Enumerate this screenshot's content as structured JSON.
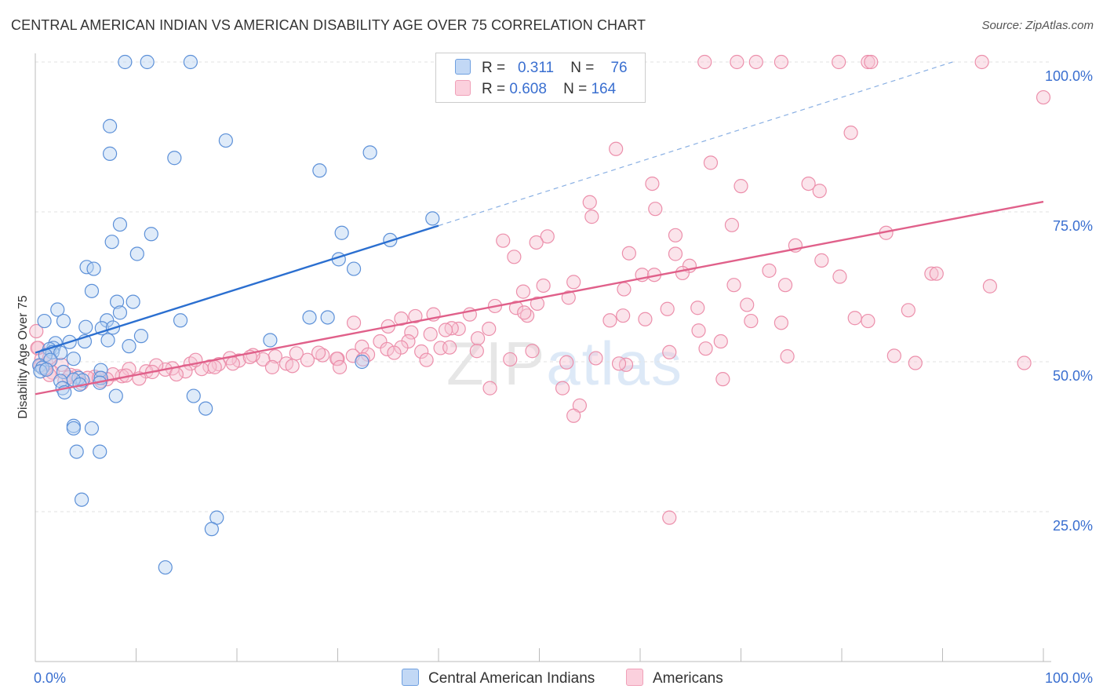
{
  "title": "CENTRAL AMERICAN INDIAN VS AMERICAN DISABILITY AGE OVER 75 CORRELATION CHART",
  "source": "Source: ZipAtlas.com",
  "watermark": "ZIPatlas",
  "legend": {
    "r_label": "R =",
    "n_label": "N =",
    "rows": [
      {
        "r": "0.311",
        "n": "76"
      },
      {
        "r": "0.608",
        "n": "164"
      }
    ]
  },
  "bottom_legend": [
    "Central American Indians",
    "Americans"
  ],
  "chart_data": {
    "type": "scatter",
    "title": "CENTRAL AMERICAN INDIAN VS AMERICAN DISABILITY AGE OVER 75 CORRELATION CHART",
    "xlabel": "",
    "ylabel": "Disability Age Over 75",
    "xlim": [
      0,
      100
    ],
    "ylim": [
      0,
      100
    ],
    "x_tick_labels": [
      "0.0%",
      "100.0%"
    ],
    "y_tick_labels": [
      "25.0%",
      "50.0%",
      "75.0%",
      "100.0%"
    ],
    "y_ticks": [
      25,
      50,
      75,
      100
    ],
    "grid": "horizontal dashed",
    "legend_position": "top-center",
    "colors": {
      "blue": "#6fa0e0",
      "blue_line": "#2b6fd0",
      "pink": "#f0a0b8",
      "pink_line": "#e0608a",
      "tick_text": "#3a6fd0"
    },
    "series": [
      {
        "name": "Central American Indians",
        "color": "#6fa0e0",
        "r": 0.311,
        "n": 76,
        "trend": {
          "x": [
            0,
            40
          ],
          "y": [
            51.5,
            72.7
          ]
        },
        "trend_extension": {
          "x": [
            40,
            91
          ],
          "y": [
            72.7,
            100
          ]
        },
        "points": [
          [
            8.9,
            100
          ],
          [
            11.1,
            100
          ],
          [
            15.4,
            100
          ],
          [
            7.4,
            89.3
          ],
          [
            18.9,
            86.9
          ],
          [
            7.4,
            84.7
          ],
          [
            13.8,
            84
          ],
          [
            28.2,
            81.9
          ],
          [
            33.2,
            84.9
          ],
          [
            39.4,
            73.9
          ],
          [
            8.4,
            72.9
          ],
          [
            11.5,
            71.3
          ],
          [
            30.4,
            71.5
          ],
          [
            7.6,
            70
          ],
          [
            35.2,
            70.3
          ],
          [
            10.1,
            68
          ],
          [
            30.1,
            67.1
          ],
          [
            31.6,
            65.5
          ],
          [
            5.1,
            65.8
          ],
          [
            5.8,
            65.5
          ],
          [
            5.6,
            61.8
          ],
          [
            8.1,
            60
          ],
          [
            9.7,
            60
          ],
          [
            8.4,
            58.2
          ],
          [
            2.2,
            58.7
          ],
          [
            0.9,
            56.8
          ],
          [
            2.8,
            56.8
          ],
          [
            5.0,
            55.8
          ],
          [
            7.1,
            56.9
          ],
          [
            6.6,
            55.6
          ],
          [
            7.7,
            55.7
          ],
          [
            14.4,
            56.9
          ],
          [
            27.2,
            57.4
          ],
          [
            29.0,
            57.4
          ],
          [
            10.5,
            54.3
          ],
          [
            7.2,
            53.6
          ],
          [
            4.9,
            53.4
          ],
          [
            3.4,
            53.3
          ],
          [
            2.0,
            53.1
          ],
          [
            1.8,
            52.3
          ],
          [
            1.4,
            52.1
          ],
          [
            9.3,
            52.6
          ],
          [
            23.3,
            53.6
          ],
          [
            1.7,
            51.6
          ],
          [
            2.5,
            51.5
          ],
          [
            1.0,
            51.1
          ],
          [
            3.8,
            50.5
          ],
          [
            1.5,
            50.3
          ],
          [
            0.4,
            49.4
          ],
          [
            0.7,
            49
          ],
          [
            0.5,
            48.4
          ],
          [
            1.1,
            48.7
          ],
          [
            2.8,
            48.3
          ],
          [
            6.5,
            48.6
          ],
          [
            4.3,
            47.3
          ],
          [
            6.5,
            47.3
          ],
          [
            4.7,
            46.9
          ],
          [
            6.4,
            46.5
          ],
          [
            2.5,
            46.8
          ],
          [
            3.8,
            47
          ],
          [
            4.4,
            46.2
          ],
          [
            2.7,
            45.6
          ],
          [
            2.9,
            44.9
          ],
          [
            8.0,
            44.3
          ],
          [
            15.7,
            44.3
          ],
          [
            16.9,
            42.2
          ],
          [
            3.8,
            39.3
          ],
          [
            5.6,
            38.9
          ],
          [
            3.8,
            38.9
          ],
          [
            4.1,
            35
          ],
          [
            6.4,
            35
          ],
          [
            4.6,
            27
          ],
          [
            18.0,
            24
          ],
          [
            17.5,
            22.1
          ],
          [
            12.9,
            15.7
          ],
          [
            32.4,
            50
          ]
        ]
      },
      {
        "name": "Americans",
        "color": "#f0a0b8",
        "r": 0.608,
        "n": 164,
        "trend": {
          "x": [
            0,
            100
          ],
          "y": [
            44.6,
            76.7
          ]
        },
        "points": [
          [
            66.4,
            100
          ],
          [
            69.6,
            100
          ],
          [
            71.5,
            100
          ],
          [
            74.0,
            100
          ],
          [
            79.7,
            100
          ],
          [
            82.6,
            100
          ],
          [
            82.9,
            100
          ],
          [
            93.9,
            100
          ],
          [
            100,
            94.1
          ],
          [
            80.9,
            88.2
          ],
          [
            57.6,
            85.5
          ],
          [
            67.0,
            83.2
          ],
          [
            61.2,
            79.7
          ],
          [
            70.0,
            79.3
          ],
          [
            76.7,
            79.7
          ],
          [
            77.8,
            78.5
          ],
          [
            55.0,
            76.6
          ],
          [
            61.5,
            75.5
          ],
          [
            55.2,
            74.2
          ],
          [
            69.1,
            72.8
          ],
          [
            50.8,
            70.9
          ],
          [
            46.4,
            70.2
          ],
          [
            63.5,
            71.1
          ],
          [
            84.4,
            71.5
          ],
          [
            94.7,
            62.6
          ],
          [
            75.4,
            69.4
          ],
          [
            49.7,
            69.9
          ],
          [
            58.9,
            68.1
          ],
          [
            63.5,
            68
          ],
          [
            47.5,
            67.5
          ],
          [
            64.9,
            66
          ],
          [
            78.0,
            66.9
          ],
          [
            72.8,
            65.2
          ],
          [
            79.8,
            64.2
          ],
          [
            88.9,
            64.7
          ],
          [
            89.4,
            64.7
          ],
          [
            60.2,
            64.5
          ],
          [
            61.4,
            64.5
          ],
          [
            50.4,
            62.7
          ],
          [
            53.4,
            63.3
          ],
          [
            64.2,
            64.8
          ],
          [
            69.3,
            62.8
          ],
          [
            74.4,
            62.8
          ],
          [
            48.4,
            61.7
          ],
          [
            58.4,
            62.1
          ],
          [
            52.9,
            60.7
          ],
          [
            49.8,
            59.7
          ],
          [
            45.6,
            59.3
          ],
          [
            65.7,
            59
          ],
          [
            47.7,
            59
          ],
          [
            70.6,
            59.5
          ],
          [
            86.6,
            58.6
          ],
          [
            62.7,
            58.8
          ],
          [
            82.6,
            56.8
          ],
          [
            71.0,
            56.8
          ],
          [
            48.8,
            57.7
          ],
          [
            58.3,
            57.7
          ],
          [
            48.5,
            58.2
          ],
          [
            43.1,
            57.9
          ],
          [
            39.5,
            57.9
          ],
          [
            37.7,
            57.6
          ],
          [
            36.3,
            57.2
          ],
          [
            35.0,
            55.9
          ],
          [
            31.6,
            56.5
          ],
          [
            57.0,
            56.9
          ],
          [
            60.5,
            57.1
          ],
          [
            65.8,
            55.2
          ],
          [
            68.0,
            53.4
          ],
          [
            45.0,
            55.5
          ],
          [
            42.0,
            55.5
          ],
          [
            41.3,
            55.6
          ],
          [
            40.7,
            55.3
          ],
          [
            39.2,
            54.6
          ],
          [
            37.3,
            54.9
          ],
          [
            37.0,
            53.4
          ],
          [
            34.2,
            53.4
          ],
          [
            32.4,
            52.5
          ],
          [
            40.2,
            52.3
          ],
          [
            43.9,
            53.9
          ],
          [
            38.3,
            51.7
          ],
          [
            36.3,
            52.4
          ],
          [
            34.9,
            52.1
          ],
          [
            33.0,
            51.2
          ],
          [
            31.5,
            51
          ],
          [
            30.0,
            50.5
          ],
          [
            29.9,
            50.5
          ],
          [
            28.5,
            51.1
          ],
          [
            27.0,
            50.3
          ],
          [
            25.9,
            51.4
          ],
          [
            24.9,
            49.7
          ],
          [
            23.8,
            50.9
          ],
          [
            22.6,
            50.4
          ],
          [
            21.6,
            51.1
          ],
          [
            20.2,
            50.2
          ],
          [
            19.3,
            50.6
          ],
          [
            18.2,
            49.6
          ],
          [
            17.3,
            49.2
          ],
          [
            16.5,
            48.8
          ],
          [
            15.4,
            49.7
          ],
          [
            14.9,
            48.4
          ],
          [
            13.6,
            48.9
          ],
          [
            12.9,
            48.7
          ],
          [
            12.0,
            49.4
          ],
          [
            11.0,
            48.4
          ],
          [
            10.3,
            47.2
          ],
          [
            9.3,
            48.8
          ],
          [
            8.6,
            47.6
          ],
          [
            7.7,
            47.9
          ],
          [
            7.1,
            47.1
          ],
          [
            6.5,
            46.8
          ],
          [
            5.9,
            47.5
          ],
          [
            5.2,
            47.3
          ],
          [
            4.6,
            46.4
          ],
          [
            4.1,
            47.6
          ],
          [
            3.5,
            47.8
          ],
          [
            2.9,
            46.8
          ],
          [
            2.6,
            49.5
          ],
          [
            1.7,
            48.2
          ],
          [
            1.4,
            47.8
          ],
          [
            1.0,
            48.9
          ],
          [
            0.6,
            50.4
          ],
          [
            0.3,
            52.3
          ],
          [
            0.1,
            55.1
          ],
          [
            0.2,
            52.3
          ],
          [
            0.5,
            49.3
          ],
          [
            1.1,
            49.7
          ],
          [
            1.4,
            50.7
          ],
          [
            3.3,
            47.4
          ],
          [
            6.3,
            47.3
          ],
          [
            9.0,
            47.7
          ],
          [
            11.6,
            48.3
          ],
          [
            14.0,
            47.9
          ],
          [
            15.9,
            50.3
          ],
          [
            17.8,
            49.1
          ],
          [
            19.6,
            49.7
          ],
          [
            21.3,
            50.8
          ],
          [
            23.5,
            49.1
          ],
          [
            25.5,
            49.3
          ],
          [
            28.1,
            51.5
          ],
          [
            30.2,
            49.1
          ],
          [
            32.5,
            50.4
          ],
          [
            35.6,
            51.5
          ],
          [
            38.8,
            50.3
          ],
          [
            41.1,
            52.4
          ],
          [
            43.8,
            51.8
          ],
          [
            47.1,
            50.4
          ],
          [
            49.3,
            51.8
          ],
          [
            52.7,
            49.9
          ],
          [
            55.6,
            50.6
          ],
          [
            62.9,
            51.6
          ],
          [
            66.5,
            52.2
          ],
          [
            74.0,
            56.5
          ],
          [
            74.6,
            50.9
          ],
          [
            81.3,
            57.3
          ],
          [
            85.2,
            51
          ],
          [
            87.3,
            49.8
          ],
          [
            98.1,
            49.8
          ],
          [
            68.2,
            47.1
          ],
          [
            45.1,
            45.6
          ],
          [
            52.3,
            45.6
          ],
          [
            54.0,
            42.7
          ],
          [
            58.6,
            49.5
          ],
          [
            57.9,
            49.7
          ],
          [
            53.4,
            41
          ],
          [
            62.9,
            24
          ]
        ]
      }
    ]
  }
}
